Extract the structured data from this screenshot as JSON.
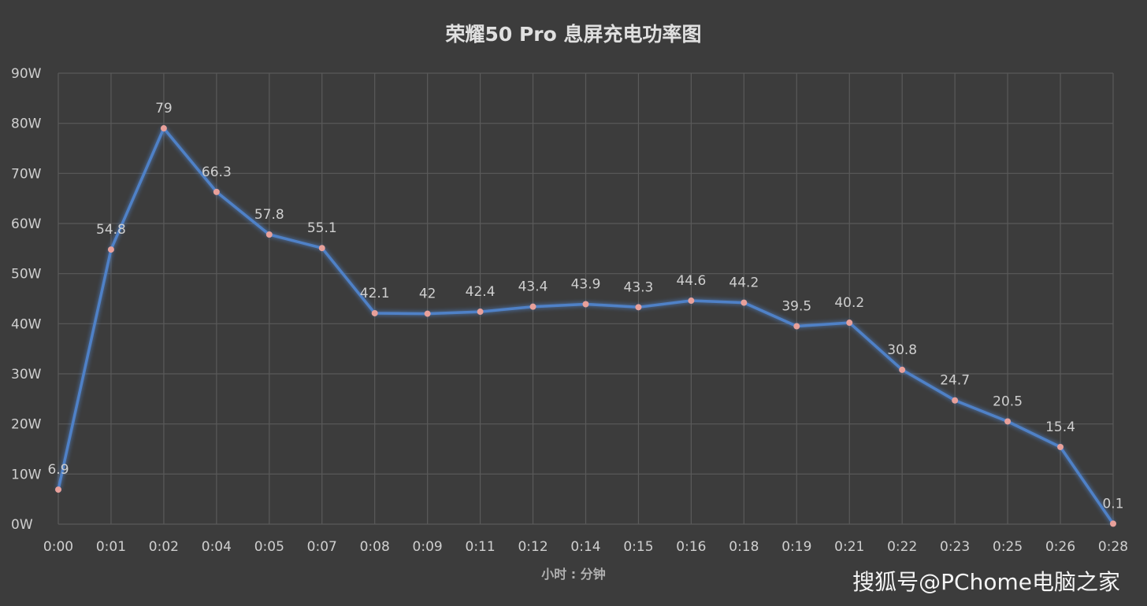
{
  "chart_data": {
    "type": "line",
    "title": "荣耀50 Pro 息屏充电功率图",
    "xlabel": "小时 : 分钟",
    "ylabel": "",
    "categories": [
      "0:00",
      "0:01",
      "0:02",
      "0:04",
      "0:05",
      "0:07",
      "0:08",
      "0:09",
      "0:11",
      "0:12",
      "0:14",
      "0:15",
      "0:16",
      "0:18",
      "0:19",
      "0:21",
      "0:22",
      "0:23",
      "0:25",
      "0:26",
      "0:28"
    ],
    "values": [
      6.9,
      54.8,
      79,
      66.3,
      57.8,
      55.1,
      42.1,
      42,
      42.4,
      43.4,
      43.9,
      43.3,
      44.6,
      44.2,
      39.5,
      40.2,
      30.8,
      24.7,
      20.5,
      15.4,
      0.1
    ],
    "data_labels": [
      "6.9",
      "54.8",
      "79",
      "66.3",
      "57.8",
      "55.1",
      "42.1",
      "42",
      "42.4",
      "43.4",
      "43.9",
      "43.3",
      "44.6",
      "44.2",
      "39.5",
      "40.2",
      "30.8",
      "24.7",
      "20.5",
      "15.4",
      "0.1"
    ],
    "y_ticks": [
      "0W",
      "10W",
      "20W",
      "30W",
      "40W",
      "50W",
      "60W",
      "70W",
      "80W",
      "90W"
    ],
    "ylim": [
      0,
      90
    ],
    "grid": true,
    "legend": "none",
    "colors": {
      "background": "#3c3c3c",
      "line": "#4f81c7",
      "marker": "#e8a09a",
      "grid": "#5a5a5a",
      "text": "#cfcfcf"
    }
  },
  "watermark": "搜狐号@PChome电脑之家"
}
